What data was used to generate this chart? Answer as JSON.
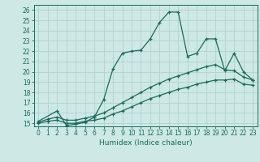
{
  "xlabel": "Humidex (Indice chaleur)",
  "bg_color": "#cde8e5",
  "line_color": "#1a6b5a",
  "grid_color": "#aacfcc",
  "xlim": [
    -0.5,
    23.5
  ],
  "ylim": [
    14.7,
    26.5
  ],
  "xticks": [
    0,
    1,
    2,
    3,
    4,
    5,
    6,
    7,
    8,
    9,
    10,
    11,
    12,
    13,
    14,
    15,
    16,
    17,
    18,
    19,
    20,
    21,
    22,
    23
  ],
  "yticks": [
    15,
    16,
    17,
    18,
    19,
    20,
    21,
    22,
    23,
    24,
    25,
    26
  ],
  "line1_x": [
    0,
    2,
    3,
    4,
    5,
    6,
    7,
    8,
    9,
    10,
    11,
    12,
    13,
    14,
    15,
    16,
    17,
    18,
    19,
    20,
    21,
    22,
    23
  ],
  "line1_y": [
    15.2,
    16.2,
    14.8,
    14.9,
    15.1,
    15.6,
    17.3,
    20.3,
    21.8,
    22.0,
    22.1,
    23.2,
    24.8,
    25.8,
    25.8,
    21.5,
    21.8,
    23.2,
    23.2,
    20.1,
    21.8,
    20.0,
    19.2
  ],
  "line2_x": [
    0,
    1,
    2,
    3,
    4,
    5,
    6,
    7,
    8,
    9,
    10,
    11,
    12,
    13,
    14,
    15,
    16,
    17,
    18,
    19,
    20,
    21,
    22,
    23
  ],
  "line2_y": [
    15.1,
    15.4,
    15.6,
    15.3,
    15.3,
    15.5,
    15.7,
    16.0,
    16.5,
    17.0,
    17.5,
    18.0,
    18.5,
    18.9,
    19.3,
    19.6,
    19.9,
    20.2,
    20.5,
    20.7,
    20.2,
    20.1,
    19.5,
    19.2
  ],
  "line3_x": [
    0,
    1,
    2,
    3,
    4,
    5,
    6,
    7,
    8,
    9,
    10,
    11,
    12,
    13,
    14,
    15,
    16,
    17,
    18,
    19,
    20,
    21,
    22,
    23
  ],
  "line3_y": [
    15.0,
    15.2,
    15.3,
    15.0,
    15.0,
    15.2,
    15.3,
    15.5,
    15.9,
    16.2,
    16.6,
    17.0,
    17.4,
    17.7,
    18.0,
    18.3,
    18.5,
    18.8,
    19.0,
    19.2,
    19.2,
    19.3,
    18.8,
    18.7
  ]
}
